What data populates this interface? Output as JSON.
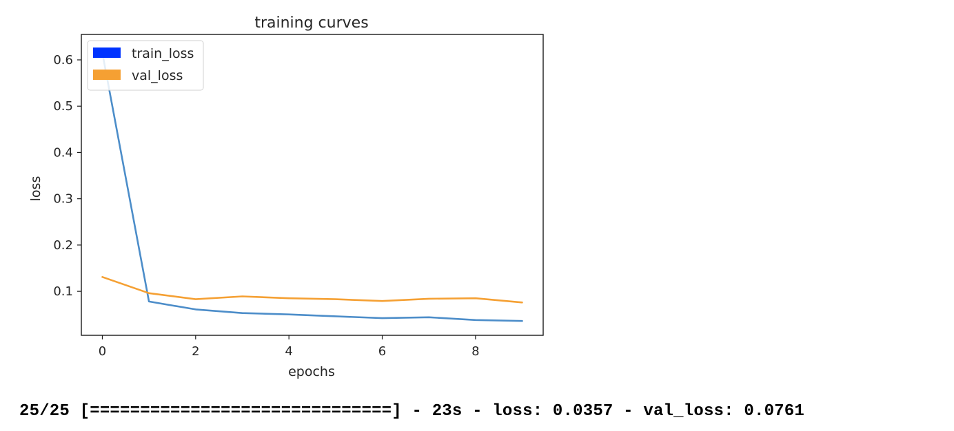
{
  "chart_data": {
    "type": "line",
    "title": "training curves",
    "xlabel": "epochs",
    "ylabel": "loss",
    "xlim": [
      -0.45,
      9.45
    ],
    "ylim": [
      0.005,
      0.655
    ],
    "xticks": [
      0,
      2,
      4,
      6,
      8
    ],
    "yticks": [
      0.1,
      0.2,
      0.3,
      0.4,
      0.5,
      0.6
    ],
    "grid": false,
    "legend_position": "upper left",
    "x": [
      0,
      1,
      2,
      3,
      4,
      5,
      6,
      7,
      8,
      9
    ],
    "series": [
      {
        "name": "train_loss",
        "legend_color": "#0033ff",
        "line_color": "#4c8dc9",
        "values": [
          0.615,
          0.078,
          0.061,
          0.053,
          0.05,
          0.046,
          0.042,
          0.044,
          0.038,
          0.036
        ]
      },
      {
        "name": "val_loss",
        "legend_color": "#f5a033",
        "line_color": "#f5a033",
        "values": [
          0.131,
          0.096,
          0.083,
          0.089,
          0.085,
          0.083,
          0.079,
          0.084,
          0.085,
          0.076
        ]
      }
    ]
  },
  "console": {
    "line": "25/25 [==============================] - 23s - loss: 0.0357 - val_loss: 0.0761"
  }
}
